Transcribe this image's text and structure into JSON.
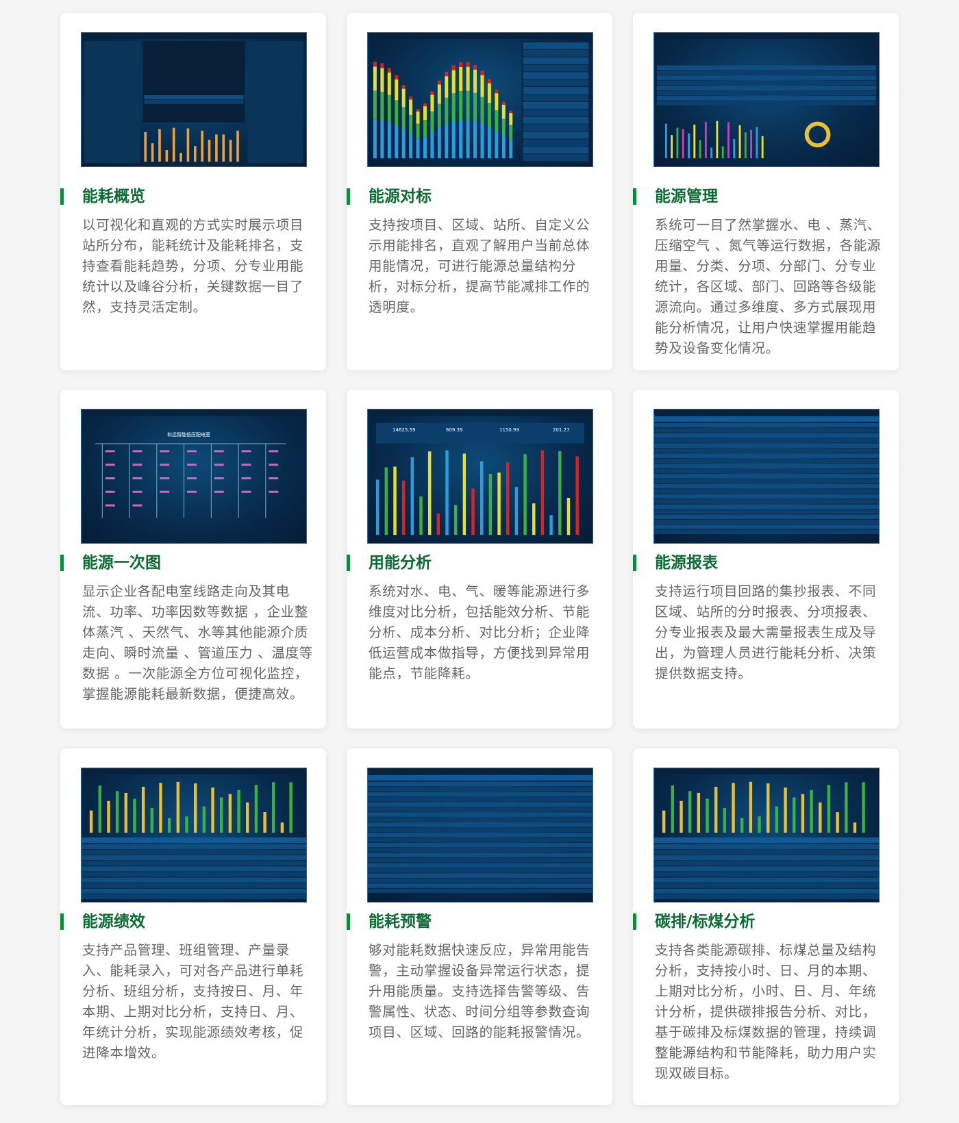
{
  "cards": [
    {
      "title": "能耗概览",
      "desc": "以可视化和直观的方式实时展示项目站所分布，能耗统计及能耗排名，支持查看能耗趋势，分项、分专业用能统计以及峰谷分析，关键数据一目了然，支持灵活定制。",
      "thumb": "dashboard"
    },
    {
      "title": "能源对标",
      "desc": "支持按项目、区域、站所、自定义公示用能排名，直观了解用户当前总体用能情况，可进行能源总量结构分析，对标分析，提高节能减排工作的透明度。",
      "thumb": "stacked-bars"
    },
    {
      "title": "能源管理",
      "desc": "系统可一目了然掌握水、电 、蒸汽、压缩空气 、氮气等运行数据，各能源用量、分类、分项、分部门、分专业统计，各区域、部门、回路等各级能源流向。通过多维度、多方式展现用能分析情况，让用户快速掌握用能趋势及设备变化情况。",
      "thumb": "table-donut"
    },
    {
      "title": "能源一次图",
      "desc": "显示企业各配电室线路走向及其电流、功率、功率因数等数据 ，企业整体蒸汽 、天然气、水等其他能源介质走向、瞬时流量 、管道压力 、温度等数据 。一次能源全方位可视化监控，掌握能源能耗最新数据，便捷高效。",
      "thumb": "diagram",
      "thumb_title": "和远智能低压配电室"
    },
    {
      "title": "用能分析",
      "desc": "系统对水、电、气、暖等能源进行多维度对比分析，包括能效分析、节能分析、成本分析、对比分析；企业降低运营成本做指导，方便找到异常用能点，节能降耗。",
      "thumb": "bars",
      "thumb_stats": [
        "14625.59",
        "609.39",
        "1150.99",
        "201.27"
      ]
    },
    {
      "title": "能源报表",
      "desc": "支持运行项目回路的集抄报表、不同区域、站所的分时报表、分项报表、分专业报表及最大需量报表生成及导出，为管理人员进行能耗分析、决策提供数据支持。",
      "thumb": "table"
    },
    {
      "title": "能源绩效",
      "desc": "支持产品管理、班组管理、产量录入、能耗录入，可对各产品进行单耗分析、班组分析，支持按日、月、年本期、上期对比分析，支持日、月、年统计分析，实现能源绩效考核，促进降本增效。",
      "thumb": "bars-table"
    },
    {
      "title": "能耗预警",
      "desc": "够对能耗数据快速反应，异常用能告警，主动掌握设备异常运行状态，提升用能质量。支持选择告警等级、告警属性、状态、时间分组等参数查询项目、区域、回路的能耗报警情况。",
      "thumb": "table"
    },
    {
      "title": "碳排/标煤分析",
      "desc": "支持各类能源碳排、标煤总量及结构分析，支持按小时、日、月的本期、上期对比分析，小时、日、月、年统计分析，提供碳排报告分析、对比，基于碳排及标煤数据的管理，持续调整能源结构和节能降耗，助力用户实现双碳目标。",
      "thumb": "bars-table"
    }
  ],
  "colors": {
    "accent": "#0c6b32",
    "bar": "#0d8a3a"
  }
}
